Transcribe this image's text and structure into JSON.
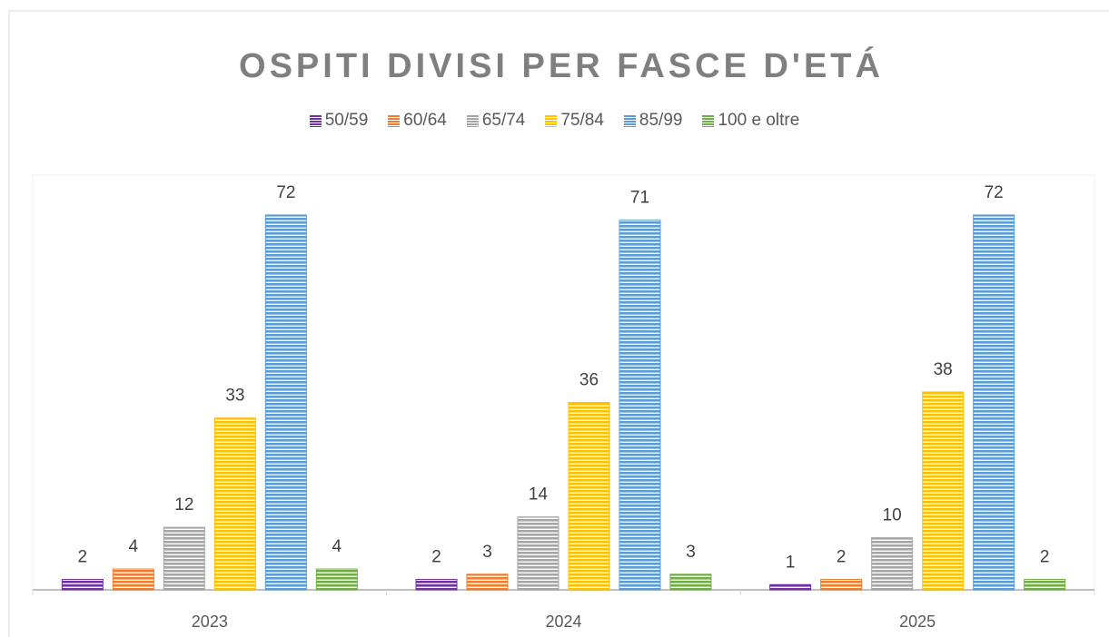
{
  "chart_data": {
    "type": "bar",
    "title": "OSPITI DIVISI PER FASCE D'ETÁ",
    "categories": [
      "2023",
      "2024",
      "2025"
    ],
    "series": [
      {
        "name": "50/59",
        "color": "#7030a0",
        "values": [
          2,
          2,
          1
        ]
      },
      {
        "name": "60/64",
        "color": "#ed7d31",
        "values": [
          4,
          3,
          2
        ]
      },
      {
        "name": "65/74",
        "color": "#a5a5a5",
        "values": [
          12,
          14,
          10
        ]
      },
      {
        "name": "75/84",
        "color": "#ffc000",
        "values": [
          33,
          36,
          38
        ]
      },
      {
        "name": "85/99",
        "color": "#5b9bd5",
        "values": [
          72,
          71,
          72
        ]
      },
      {
        "name": "100 e oltre",
        "color": "#70ad47",
        "values": [
          4,
          3,
          2
        ]
      }
    ],
    "ylim": [
      0,
      80
    ],
    "legend": "top"
  }
}
